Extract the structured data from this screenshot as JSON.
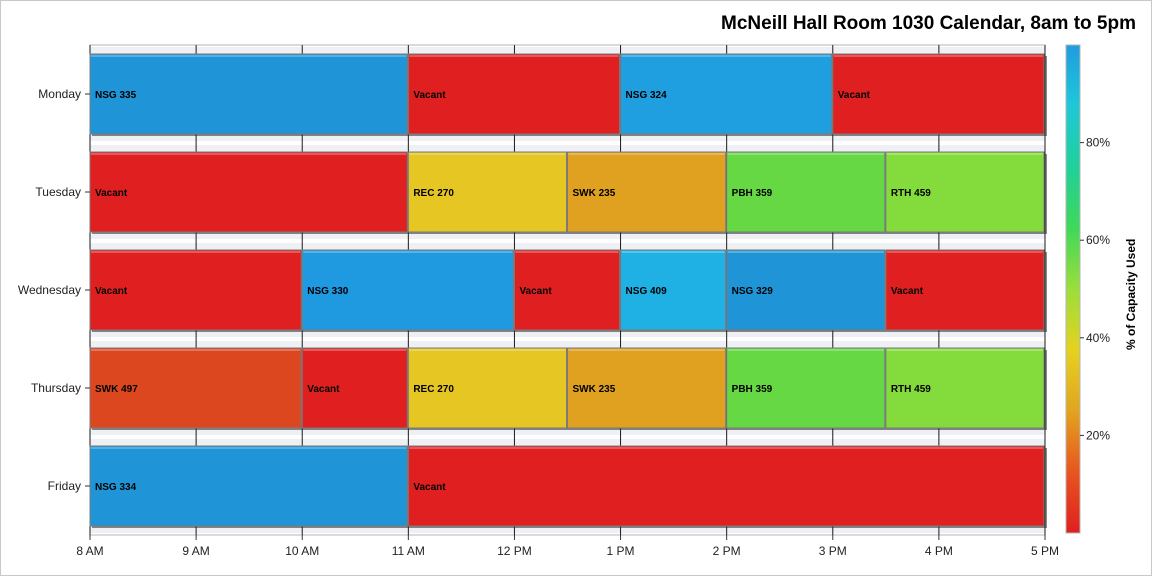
{
  "chart_data": {
    "type": "bar",
    "subtype": "horizontal-timeline",
    "title": "McNeill Hall Room 1030 Calendar, 8am to 5pm",
    "xlabel": "",
    "ylabel": "",
    "x_ticks": [
      "8 AM",
      "9 AM",
      "10 AM",
      "11 AM",
      "12 PM",
      "1 PM",
      "2 PM",
      "3 PM",
      "4 PM",
      "5 PM"
    ],
    "xlim": [
      8,
      17
    ],
    "categories": [
      "Monday",
      "Tuesday",
      "Wednesday",
      "Thursday",
      "Friday"
    ],
    "colorbar": {
      "label": "% of Capacity Used",
      "ticks": [
        "20%",
        "40%",
        "60%",
        "80%"
      ],
      "tick_values": [
        20,
        40,
        60,
        80
      ],
      "range": [
        0,
        100
      ],
      "colors": [
        "#e01f1f",
        "#e8551f",
        "#e2a41f",
        "#e4d21f",
        "#9bde3a",
        "#3fd85a",
        "#1fd19a",
        "#1fc8d8",
        "#1f9ce0"
      ]
    },
    "events": [
      {
        "day": "Monday",
        "start": 8,
        "end": 11,
        "label": "NSG 335",
        "color": "#1f95d8"
      },
      {
        "day": "Monday",
        "start": 11,
        "end": 13,
        "label": "Vacant",
        "color": "#e02020"
      },
      {
        "day": "Monday",
        "start": 13,
        "end": 15,
        "label": "NSG 324",
        "color": "#1f9ee0"
      },
      {
        "day": "Monday",
        "start": 15,
        "end": 17,
        "label": "Vacant",
        "color": "#e02020"
      },
      {
        "day": "Tuesday",
        "start": 8,
        "end": 11,
        "label": "Vacant",
        "color": "#e02020"
      },
      {
        "day": "Tuesday",
        "start": 11,
        "end": 12.5,
        "label": "REC 270",
        "color": "#e6c623"
      },
      {
        "day": "Tuesday",
        "start": 12.5,
        "end": 14,
        "label": "SWK 235",
        "color": "#e0a020"
      },
      {
        "day": "Tuesday",
        "start": 14,
        "end": 15.5,
        "label": "PBH 359",
        "color": "#66d844"
      },
      {
        "day": "Tuesday",
        "start": 15.5,
        "end": 17,
        "label": "RTH 459",
        "color": "#84dc3c"
      },
      {
        "day": "Wednesday",
        "start": 8,
        "end": 10,
        "label": "Vacant",
        "color": "#e02020"
      },
      {
        "day": "Wednesday",
        "start": 10,
        "end": 12,
        "label": "NSG 330",
        "color": "#1f9ae0"
      },
      {
        "day": "Wednesday",
        "start": 12,
        "end": 13,
        "label": "Vacant",
        "color": "#e02020"
      },
      {
        "day": "Wednesday",
        "start": 13,
        "end": 14,
        "label": "NSG 409",
        "color": "#1fb0e4"
      },
      {
        "day": "Wednesday",
        "start": 14,
        "end": 15.5,
        "label": "NSG 329",
        "color": "#1f95d8"
      },
      {
        "day": "Wednesday",
        "start": 15.5,
        "end": 17,
        "label": "Vacant",
        "color": "#e02020"
      },
      {
        "day": "Thursday",
        "start": 8,
        "end": 10,
        "label": "SWK 497",
        "color": "#dd4720"
      },
      {
        "day": "Thursday",
        "start": 10,
        "end": 11,
        "label": "Vacant",
        "color": "#e02020"
      },
      {
        "day": "Thursday",
        "start": 11,
        "end": 12.5,
        "label": "REC 270",
        "color": "#e6c623"
      },
      {
        "day": "Thursday",
        "start": 12.5,
        "end": 14,
        "label": "SWK 235",
        "color": "#e0a020"
      },
      {
        "day": "Thursday",
        "start": 14,
        "end": 15.5,
        "label": "PBH 359",
        "color": "#66d844"
      },
      {
        "day": "Thursday",
        "start": 15.5,
        "end": 17,
        "label": "RTH 459",
        "color": "#84dc3c"
      },
      {
        "day": "Friday",
        "start": 8,
        "end": 11,
        "label": "NSG 334",
        "color": "#1f95d8"
      },
      {
        "day": "Friday",
        "start": 11,
        "end": 17,
        "label": "Vacant",
        "color": "#e02020"
      }
    ],
    "grid": true,
    "legend": "right"
  }
}
